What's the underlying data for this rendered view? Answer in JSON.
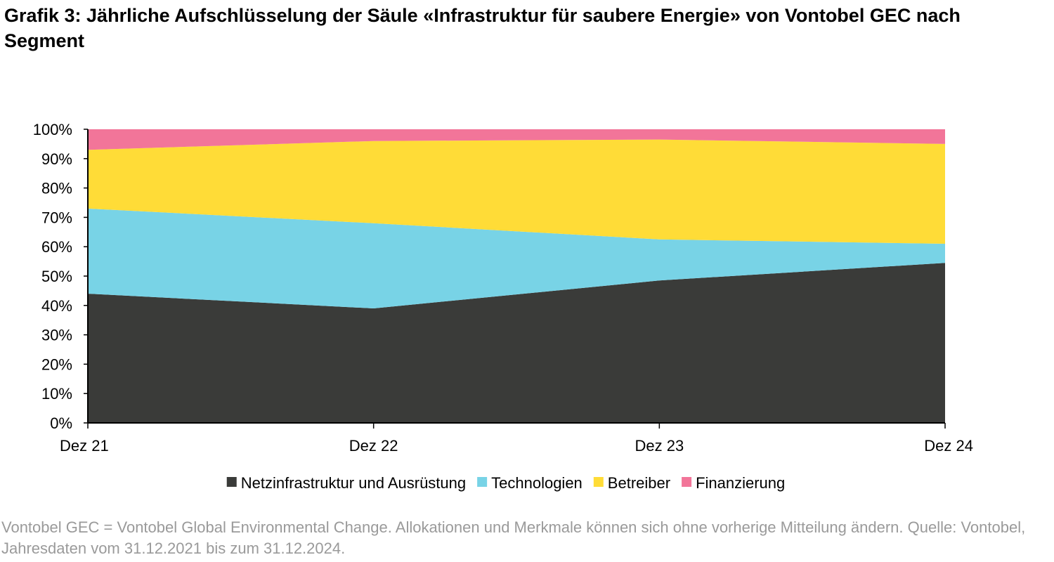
{
  "title": "Grafik 3: Jährliche Aufschlüsselung der Säule «Infrastruktur für saubere Energie» von Vontobel GEC nach Segment",
  "footnote": "Vontobel GEC = Vontobel Global Environmental Change. Allokationen und Merkmale können sich ohne vorherige Mitteilung ändern. Quelle: Vontobel, Jahresdaten vom 31.12.2021 bis zum 31.12.2024.",
  "chart_data": {
    "type": "area",
    "stacked": true,
    "categories": [
      "Dez 21",
      "Dez 22",
      "Dez 23",
      "Dez 24"
    ],
    "series": [
      {
        "name": "Netzinfrastruktur und Ausrüstung",
        "color": "#3a3b39",
        "values": [
          44,
          39,
          48.5,
          54.5
        ]
      },
      {
        "name": "Technologien",
        "color": "#78d3e6",
        "values": [
          29,
          29,
          14,
          6.5
        ]
      },
      {
        "name": "Betreiber",
        "color": "#ffdc37",
        "values": [
          20,
          28,
          34,
          34
        ]
      },
      {
        "name": "Finanzierung",
        "color": "#f27599",
        "values": [
          7,
          4,
          3.5,
          5
        ]
      }
    ],
    "y_ticks": [
      "0%",
      "10%",
      "20%",
      "30%",
      "40%",
      "50%",
      "60%",
      "70%",
      "80%",
      "90%",
      "100%"
    ],
    "ylim": [
      0,
      100
    ],
    "legend_position": "bottom",
    "grid": false
  }
}
